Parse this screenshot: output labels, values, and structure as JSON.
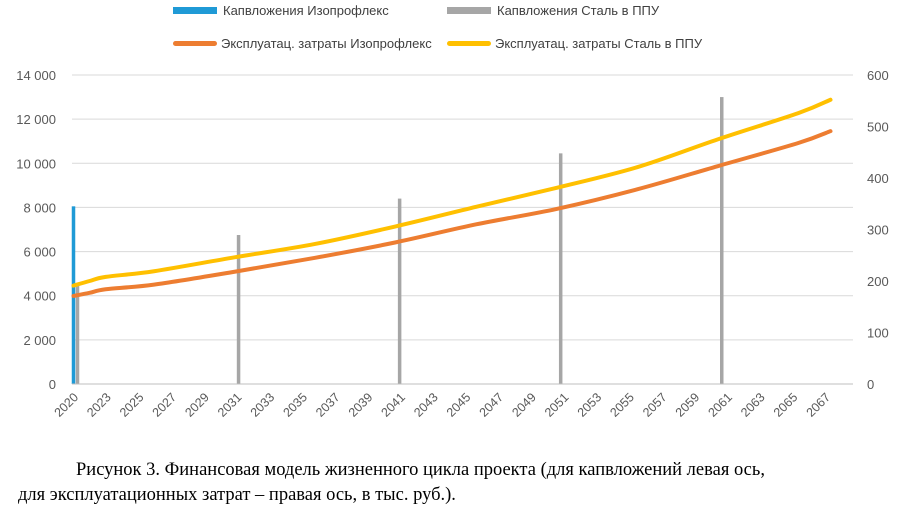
{
  "legend": {
    "capex_izoproflex": "Капвложения Изопрофлекс",
    "capex_steel": "Капвложения Сталь в ППУ",
    "opex_izoproflex": "Эксплуатац. затраты Изопрофлекс",
    "opex_steel": "Эксплуатац. затраты Сталь в ППУ"
  },
  "caption": {
    "line1": "Рисунок 3. Финансовая модель жизненного цикла проекта (для капвложений левая ось,",
    "line2": "для эксплуатационных затрат – правая ось, в тыс. руб.)."
  },
  "chart_data": {
    "type": "bar+line",
    "title": "",
    "x_range": [
      2020,
      2067
    ],
    "x_tick_labels": [
      "2020",
      "2023",
      "2025",
      "2027",
      "2029",
      "2031",
      "2033",
      "2035",
      "2037",
      "2039",
      "2041",
      "2043",
      "2045",
      "2047",
      "2049",
      "2051",
      "2053",
      "2055",
      "2057",
      "2059",
      "2061",
      "2063",
      "2065",
      "2067"
    ],
    "y_left": {
      "min": 0,
      "max": 14000,
      "step": 2000,
      "tick_labels": [
        "0",
        "2 000",
        "4 000",
        "6 000",
        "8 000",
        "10 000",
        "12 000",
        "14 000"
      ]
    },
    "y_right": {
      "min": 0,
      "max": 600,
      "step": 100,
      "tick_labels": [
        "0",
        "100",
        "200",
        "300",
        "400",
        "500",
        "600"
      ]
    },
    "grid": "horizontal",
    "legend_position": "top",
    "colors": {
      "capex_izoproflex": "#1f9ad6",
      "capex_steel": "#a6a6a6",
      "opex_izoproflex": "#ed7d31",
      "opex_steel": "#ffc000"
    },
    "bar_series": [
      {
        "name": "Капвложения Изопрофлекс",
        "axis": "left",
        "x": [
          2020
        ],
        "values": [
          8050
        ]
      },
      {
        "name": "Капвложения Сталь в ППУ",
        "axis": "left",
        "x": [
          2020,
          2030,
          2040,
          2050,
          2060
        ],
        "values": [
          4500,
          6750,
          8400,
          10450,
          13000
        ]
      }
    ],
    "line_series": [
      {
        "name": "Эксплуатац. затраты Изопрофлекс",
        "axis": "right",
        "x": [
          2020,
          2021,
          2022,
          2025,
          2030,
          2035,
          2040,
          2045,
          2050,
          2055,
          2060,
          2065,
          2067
        ],
        "values": [
          171,
          177,
          184,
          193,
          218,
          245,
          275,
          310,
          340,
          378,
          423,
          468,
          491
        ]
      },
      {
        "name": "Эксплуатац. затраты Сталь в ППУ",
        "axis": "right",
        "x": [
          2020,
          2021,
          2022,
          2025,
          2030,
          2035,
          2040,
          2045,
          2050,
          2055,
          2060,
          2065,
          2067
        ],
        "values": [
          191,
          200,
          208,
          219,
          246,
          272,
          306,
          344,
          381,
          421,
          475,
          526,
          552
        ]
      }
    ]
  }
}
